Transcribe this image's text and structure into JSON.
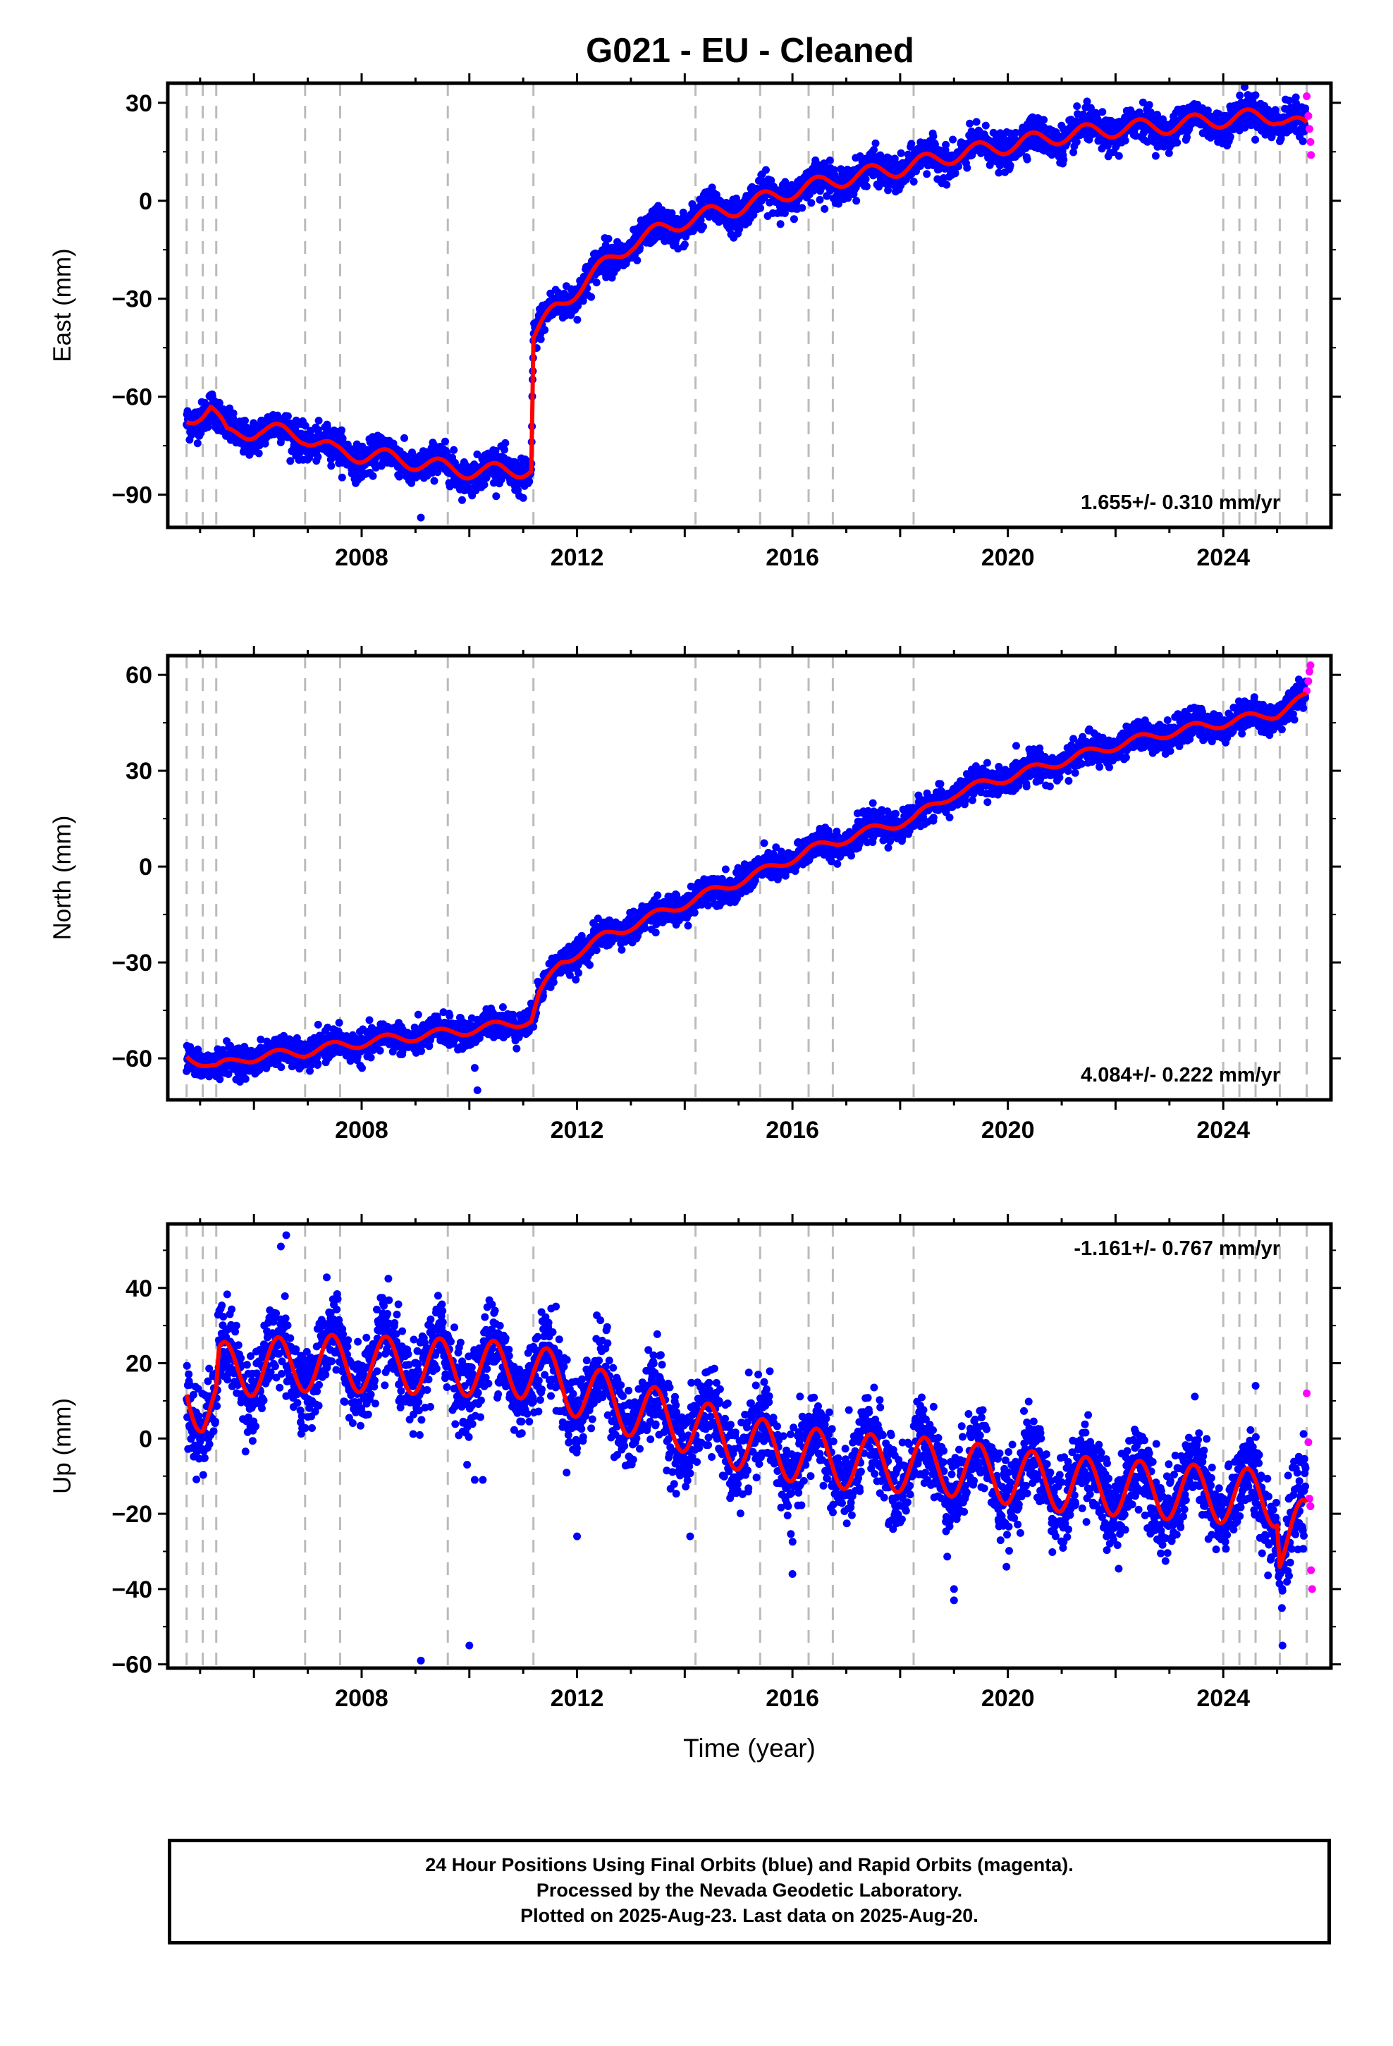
{
  "title": "G021  - EU - Cleaned",
  "xlabel": "Time (year)",
  "colors": {
    "final": "#0000ff",
    "rapid": "#ff00ff",
    "model": "#ff0000",
    "breaks": "#bbbbbb"
  },
  "footer": {
    "line1": "24 Hour Positions Using Final Orbits (blue) and Rapid Orbits (magenta).",
    "line2": "Processed by the Nevada Geodetic Laboratory.",
    "line3": "Plotted on 2025-Aug-23. Last data on 2025-Aug-20."
  },
  "chart_data": [
    {
      "type": "scatter",
      "component": "east",
      "ylabel": "East (mm)",
      "rate_label": "1.655+/- 0.310 mm/yr",
      "xlim": [
        2004.4,
        2026.0
      ],
      "ylim": [
        -100,
        36
      ],
      "yticks": [
        -90,
        -60,
        -30,
        0,
        30
      ],
      "xticks": [
        2008,
        2012,
        2016,
        2020,
        2024
      ],
      "breaks": [
        2004.75,
        2005.05,
        2005.3,
        2006.95,
        2007.6,
        2009.6,
        2011.19,
        2014.2,
        2015.4,
        2016.3,
        2016.75,
        2018.25,
        2024.0,
        2024.3,
        2024.6,
        2025.05,
        2025.55
      ],
      "model": [
        [
          2004.75,
          -67
        ],
        [
          2005.2,
          -63
        ],
        [
          2005.5,
          -72
        ],
        [
          2006.1,
          -70
        ],
        [
          2006.95,
          -72
        ],
        [
          2007.5,
          -77
        ],
        [
          2008.2,
          -78
        ],
        [
          2009.0,
          -80
        ],
        [
          2009.6,
          -82
        ],
        [
          2010.3,
          -83
        ],
        [
          2011.15,
          -82
        ],
        [
          2011.19,
          -42
        ],
        [
          2011.6,
          -33
        ],
        [
          2012.2,
          -24
        ],
        [
          2013.0,
          -13
        ],
        [
          2014.0,
          -6
        ],
        [
          2015.0,
          -2
        ],
        [
          2016.0,
          3
        ],
        [
          2017.0,
          7
        ],
        [
          2018.0,
          10
        ],
        [
          2019.0,
          14
        ],
        [
          2020.0,
          17
        ],
        [
          2021.0,
          20
        ],
        [
          2022.0,
          22
        ],
        [
          2023.0,
          23
        ],
        [
          2024.0,
          25
        ],
        [
          2025.0,
          26
        ],
        [
          2025.55,
          22
        ]
      ],
      "seasonal_amp": 2.5,
      "noise": 2.5,
      "outliers": [
        [
          2009.1,
          -97
        ],
        [
          2011.0,
          -91
        ]
      ],
      "rapid": [
        [
          2025.55,
          32
        ],
        [
          2025.58,
          26
        ],
        [
          2025.6,
          22
        ],
        [
          2025.62,
          18
        ],
        [
          2025.63,
          14
        ]
      ]
    },
    {
      "type": "scatter",
      "component": "north",
      "ylabel": "North (mm)",
      "rate_label": "4.084+/- 0.222 mm/yr",
      "xlim": [
        2004.4,
        2026.0
      ],
      "ylim": [
        -73,
        66
      ],
      "yticks": [
        -60,
        -30,
        0,
        30,
        60
      ],
      "xticks": [
        2008,
        2012,
        2016,
        2020,
        2024
      ],
      "breaks": [
        2004.75,
        2005.05,
        2005.3,
        2006.95,
        2007.6,
        2009.6,
        2011.19,
        2014.2,
        2015.4,
        2016.3,
        2016.75,
        2018.25,
        2024.0,
        2024.3,
        2024.6,
        2025.05,
        2025.55
      ],
      "model": [
        [
          2004.75,
          -59
        ],
        [
          2005.3,
          -63
        ],
        [
          2005.8,
          -60
        ],
        [
          2006.95,
          -58
        ],
        [
          2007.6,
          -56
        ],
        [
          2008.5,
          -54
        ],
        [
          2009.6,
          -52
        ],
        [
          2010.5,
          -50
        ],
        [
          2011.15,
          -48
        ],
        [
          2011.3,
          -40
        ],
        [
          2011.7,
          -30
        ],
        [
          2012.5,
          -22
        ],
        [
          2013.5,
          -15
        ],
        [
          2014.5,
          -8
        ],
        [
          2015.4,
          -2
        ],
        [
          2016.3,
          5
        ],
        [
          2017.2,
          10
        ],
        [
          2018.25,
          15
        ],
        [
          2019.0,
          23
        ],
        [
          2020.0,
          28
        ],
        [
          2021.0,
          33
        ],
        [
          2022.0,
          38
        ],
        [
          2023.0,
          42
        ],
        [
          2024.0,
          45
        ],
        [
          2025.0,
          48
        ],
        [
          2025.55,
          53
        ]
      ],
      "seasonal_amp": 1.5,
      "noise": 2.2,
      "outliers": [
        [
          2010.1,
          -63
        ],
        [
          2010.15,
          -70
        ]
      ],
      "rapid": [
        [
          2025.55,
          55
        ],
        [
          2025.58,
          58
        ],
        [
          2025.6,
          61
        ],
        [
          2025.62,
          63
        ]
      ]
    },
    {
      "type": "scatter",
      "component": "up",
      "ylabel": "Up (mm)",
      "rate_label": "-1.161+/- 0.767 mm/yr",
      "xlim": [
        2004.4,
        2026.0
      ],
      "ylim": [
        -61,
        57
      ],
      "yticks": [
        -60,
        -40,
        -20,
        0,
        20,
        40
      ],
      "xticks": [
        2008,
        2012,
        2016,
        2020,
        2024
      ],
      "breaks": [
        2004.75,
        2005.05,
        2005.3,
        2006.95,
        2007.6,
        2009.6,
        2011.19,
        2014.2,
        2015.4,
        2016.3,
        2016.75,
        2018.25,
        2024.0,
        2024.3,
        2024.6,
        2025.05,
        2025.55
      ],
      "model": [
        [
          2004.75,
          14
        ],
        [
          2005.05,
          8
        ],
        [
          2005.3,
          9
        ],
        [
          2005.35,
          18
        ],
        [
          2006.95,
          20
        ],
        [
          2007.6,
          20
        ],
        [
          2009.6,
          19
        ],
        [
          2011.19,
          18
        ],
        [
          2012.0,
          13
        ],
        [
          2013.0,
          8
        ],
        [
          2014.2,
          3
        ],
        [
          2015.0,
          -1
        ],
        [
          2016.0,
          -4
        ],
        [
          2017.0,
          -6
        ],
        [
          2018.25,
          -7
        ],
        [
          2019.0,
          -8
        ],
        [
          2020.0,
          -10
        ],
        [
          2021.0,
          -12
        ],
        [
          2022.0,
          -13
        ],
        [
          2023.0,
          -14
        ],
        [
          2024.0,
          -15
        ],
        [
          2025.0,
          -16
        ],
        [
          2025.05,
          -28
        ],
        [
          2025.55,
          -23
        ]
      ],
      "seasonal_amp": 7.5,
      "noise": 5.5,
      "outliers": [
        [
          2006.6,
          54
        ],
        [
          2006.5,
          51
        ],
        [
          2009.1,
          -59
        ],
        [
          2010.0,
          -55
        ],
        [
          2010.1,
          -11
        ],
        [
          2010.25,
          -11
        ],
        [
          2012.0,
          -26
        ],
        [
          2014.1,
          -26
        ],
        [
          2016.0,
          -36
        ],
        [
          2019.0,
          -43
        ],
        [
          2019.0,
          -40
        ],
        [
          2024.6,
          14
        ],
        [
          2025.1,
          -55
        ]
      ],
      "rapid": [
        [
          2025.55,
          12
        ],
        [
          2025.58,
          -1
        ],
        [
          2025.6,
          -16
        ],
        [
          2025.62,
          -18
        ],
        [
          2025.63,
          -35
        ],
        [
          2025.65,
          -40
        ]
      ]
    }
  ]
}
